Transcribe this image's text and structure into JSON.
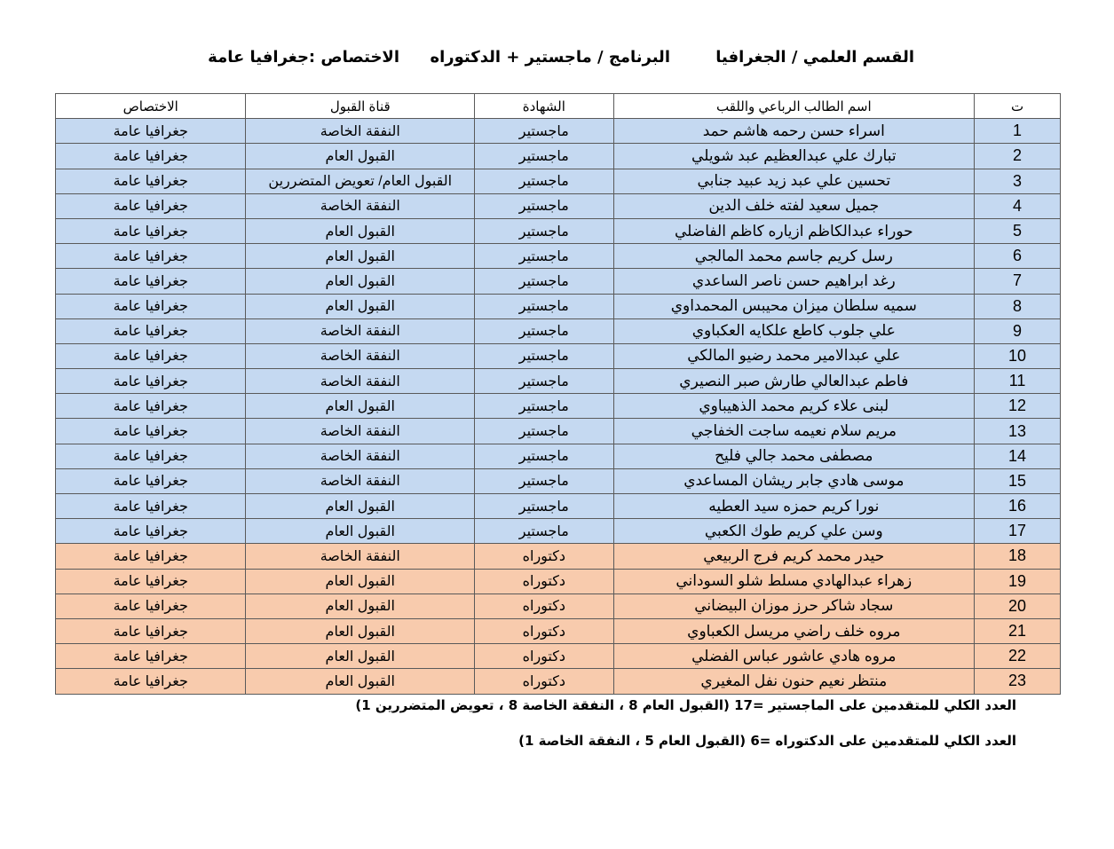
{
  "header": {
    "department": "القسم العلمي / الجغرافيا",
    "program": "البرنامج / ماجستير + الدكتوراه",
    "specialization": "الاختصاص :جغرافيا عامة"
  },
  "colors": {
    "master_row": "#c5d9f1",
    "phd_row": "#f8cbad"
  },
  "table": {
    "columns": [
      "ت",
      "اسم الطالب الرباعي واللقب",
      "الشهادة",
      "قناة القبول",
      "الاختصاص"
    ],
    "rows": [
      {
        "n": "1",
        "name": "اسراء حسن رحمه هاشم حمد",
        "degree": "ماجستير",
        "channel": "النفقة الخاصة",
        "spec": "جغرافيا عامة"
      },
      {
        "n": "2",
        "name": "تبارك علي عبدالعظيم عبد شويلي",
        "degree": "ماجستير",
        "channel": "القبول العام",
        "spec": "جغرافيا عامة"
      },
      {
        "n": "3",
        "name": "تحسين علي عبد زيد عبيد جنابي",
        "degree": "ماجستير",
        "channel": "القبول العام/ تعويض المتضررين",
        "spec": "جغرافيا عامة"
      },
      {
        "n": "4",
        "name": "جميل سعيد لفته خلف الدين",
        "degree": "ماجستير",
        "channel": "النفقة الخاصة",
        "spec": "جغرافيا عامة"
      },
      {
        "n": "5",
        "name": "حوراء عبدالكاظم ازياره كاظم الفاضلي",
        "degree": "ماجستير",
        "channel": "القبول العام",
        "spec": "جغرافيا عامة"
      },
      {
        "n": "6",
        "name": "رسل كريم جاسم محمد المالجي",
        "degree": "ماجستير",
        "channel": "القبول العام",
        "spec": "جغرافيا عامة"
      },
      {
        "n": "7",
        "name": "رغد ابراهيم حسن ناصر الساعدي",
        "degree": "ماجستير",
        "channel": "القبول العام",
        "spec": "جغرافيا عامة"
      },
      {
        "n": "8",
        "name": "سميه سلطان ميزان محيبس المحمداوي",
        "degree": "ماجستير",
        "channel": "القبول العام",
        "spec": "جغرافيا عامة"
      },
      {
        "n": "9",
        "name": "علي جلوب كاطع علكايه العكباوي",
        "degree": "ماجستير",
        "channel": "النفقة الخاصة",
        "spec": "جغرافيا عامة"
      },
      {
        "n": "10",
        "name": "علي عبدالامير محمد رضيو المالكي",
        "degree": "ماجستير",
        "channel": "النفقة الخاصة",
        "spec": "جغرافيا عامة"
      },
      {
        "n": "11",
        "name": "فاطم عبدالعالي طارش صبر النصيري",
        "degree": "ماجستير",
        "channel": "النفقة الخاصة",
        "spec": "جغرافيا عامة"
      },
      {
        "n": "12",
        "name": "لبنى علاء كريم محمد الذهيباوي",
        "degree": "ماجستير",
        "channel": "القبول العام",
        "spec": "جغرافيا عامة"
      },
      {
        "n": "13",
        "name": "مريم سلام نعيمه ساجت الخفاجي",
        "degree": "ماجستير",
        "channel": "النفقة الخاصة",
        "spec": "جغرافيا عامة"
      },
      {
        "n": "14",
        "name": "مصطفى محمد جالي فليح",
        "degree": "ماجستير",
        "channel": "النفقة الخاصة",
        "spec": "جغرافيا عامة"
      },
      {
        "n": "15",
        "name": "موسى هادي جابر ريشان المساعدي",
        "degree": "ماجستير",
        "channel": "النفقة الخاصة",
        "spec": "جغرافيا عامة"
      },
      {
        "n": "16",
        "name": "نورا كريم حمزه سيد العطيه",
        "degree": "ماجستير",
        "channel": "القبول العام",
        "spec": "جغرافيا عامة"
      },
      {
        "n": "17",
        "name": "وسن علي كريم طوك الكعبي",
        "degree": "ماجستير",
        "channel": "القبول العام",
        "spec": "جغرافيا عامة"
      },
      {
        "n": "18",
        "name": "حيدر محمد كريم فرج الربيعي",
        "degree": "دكتوراه",
        "channel": "النفقة الخاصة",
        "spec": "جغرافيا عامة"
      },
      {
        "n": "19",
        "name": "زهراء عبدالهادي مسلط شلو السوداني",
        "degree": "دكتوراه",
        "channel": "القبول العام",
        "spec": "جغرافيا عامة"
      },
      {
        "n": "20",
        "name": "سجاد شاكر حرز موزان البيضاني",
        "degree": "دكتوراه",
        "channel": "القبول العام",
        "spec": "جغرافيا عامة"
      },
      {
        "n": "21",
        "name": "مروه خلف راضي مريسل الكعباوي",
        "degree": "دكتوراه",
        "channel": "القبول العام",
        "spec": "جغرافيا عامة"
      },
      {
        "n": "22",
        "name": "مروه هادي عاشور عباس الفضلي",
        "degree": "دكتوراه",
        "channel": "القبول العام",
        "spec": "جغرافيا عامة"
      },
      {
        "n": "23",
        "name": "منتظر نعيم حنون نفل المغيري",
        "degree": "دكتوراه",
        "channel": "القبول العام",
        "spec": "جغرافيا عامة"
      }
    ]
  },
  "summary": {
    "master": "العدد الكلي للمتقدمين على الماجستير =17  (القبول العام 8 ، النفقة الخاصة 8 ، تعويض المتضررين 1)",
    "phd": "العدد الكلي للمتقدمين على الدكتوراه =6   (القبول العام 5 ، النفقة الخاصة 1)"
  }
}
